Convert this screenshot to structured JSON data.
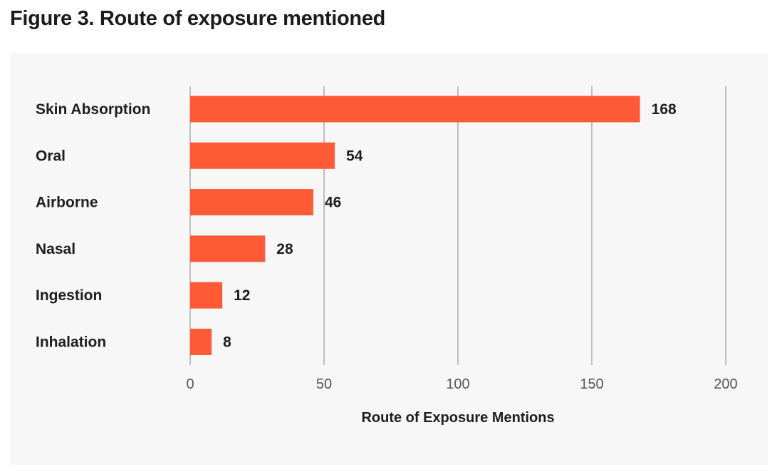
{
  "figure": {
    "title": "Figure 3. Route of exposure mentioned"
  },
  "chart_data": {
    "type": "bar",
    "orientation": "horizontal",
    "title": "",
    "categories": [
      "Skin Absorption",
      "Oral",
      "Airborne",
      "Nasal",
      "Ingestion",
      "Inhalation"
    ],
    "values": [
      168,
      54,
      46,
      28,
      12,
      8
    ],
    "xlabel": "Route of Exposure Mentions",
    "ylabel": "",
    "xlim": [
      0,
      200
    ],
    "xticks": [
      0,
      50,
      100,
      150,
      200
    ],
    "grid": true,
    "legend": "none",
    "bar_color": "#ff5a36",
    "panel_color": "#f7f7f7"
  }
}
